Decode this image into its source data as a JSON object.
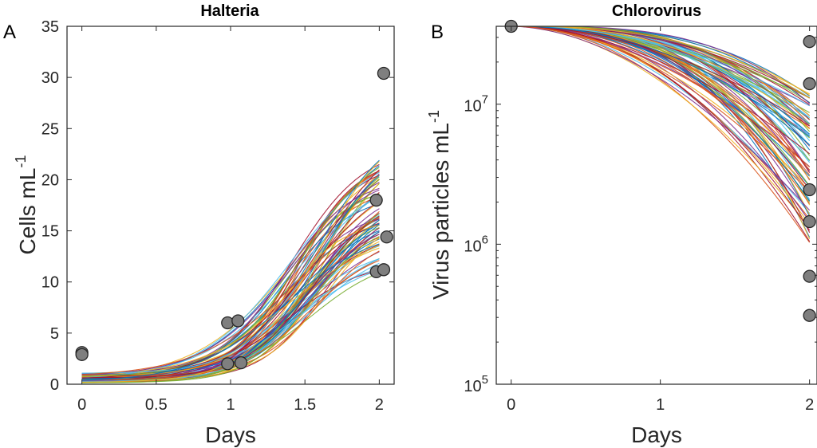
{
  "chart_data": [
    {
      "type": "line",
      "panel_label": "A",
      "title": "Halteria",
      "xlabel": "Days",
      "ylabel_main": "Cells mL",
      "ylabel_sup": "-1",
      "xlim": [
        -0.1,
        2.1
      ],
      "ylim": [
        0,
        35
      ],
      "yscale": "linear",
      "xticks": [
        0,
        0.5,
        1,
        1.5,
        2
      ],
      "xtick_labels": [
        "0",
        "0.5",
        "1",
        "1.5",
        "2"
      ],
      "yticks": [
        0,
        5,
        10,
        15,
        20,
        25,
        30,
        35
      ],
      "ytick_labels": [
        "0",
        "5",
        "10",
        "15",
        "20",
        "25",
        "30",
        "35"
      ],
      "observations": {
        "x": [
          0,
          0,
          0.98,
          1.05,
          0.98,
          1.07,
          1.98,
          2.03,
          2.05,
          1.98,
          2.03
        ],
        "y": [
          3.1,
          2.9,
          6.0,
          6.2,
          2.0,
          2.1,
          18.0,
          30.4,
          14.4,
          11.0,
          11.2
        ]
      },
      "simulations": {
        "count": 80,
        "x_end": 2,
        "start_range": [
          0.1,
          1.1
        ],
        "end_range": [
          10.8,
          22.0
        ],
        "legend": "none"
      }
    },
    {
      "type": "line",
      "panel_label": "B",
      "title": "Chlorovirus",
      "xlabel": "Days",
      "ylabel_main": "Virus particles mL",
      "ylabel_sup": "-1",
      "xlim": [
        -0.1,
        2.05
      ],
      "ylim": [
        100000,
        36000000
      ],
      "yscale": "log",
      "xticks": [
        0,
        1,
        2
      ],
      "xtick_labels": [
        "0",
        "1",
        "2"
      ],
      "yticks": [
        100000,
        1000000,
        10000000
      ],
      "ytick_base": [
        "10",
        "10",
        "10"
      ],
      "ytick_exp": [
        "5",
        "6",
        "7"
      ],
      "observations": {
        "x": [
          0,
          2,
          2,
          2,
          2,
          2,
          2
        ],
        "y": [
          36000000,
          28000000,
          14000000,
          2450000,
          1450000,
          590000,
          310000
        ]
      },
      "simulations": {
        "count": 80,
        "x_end": 2,
        "start_value": 36000000,
        "end_range": [
          950000,
          12000000
        ],
        "legend": "none"
      }
    }
  ],
  "palette": [
    "#0072BD",
    "#D95319",
    "#EDB120",
    "#7E2F8E",
    "#77AC30",
    "#4DBEEE",
    "#A2142F"
  ]
}
